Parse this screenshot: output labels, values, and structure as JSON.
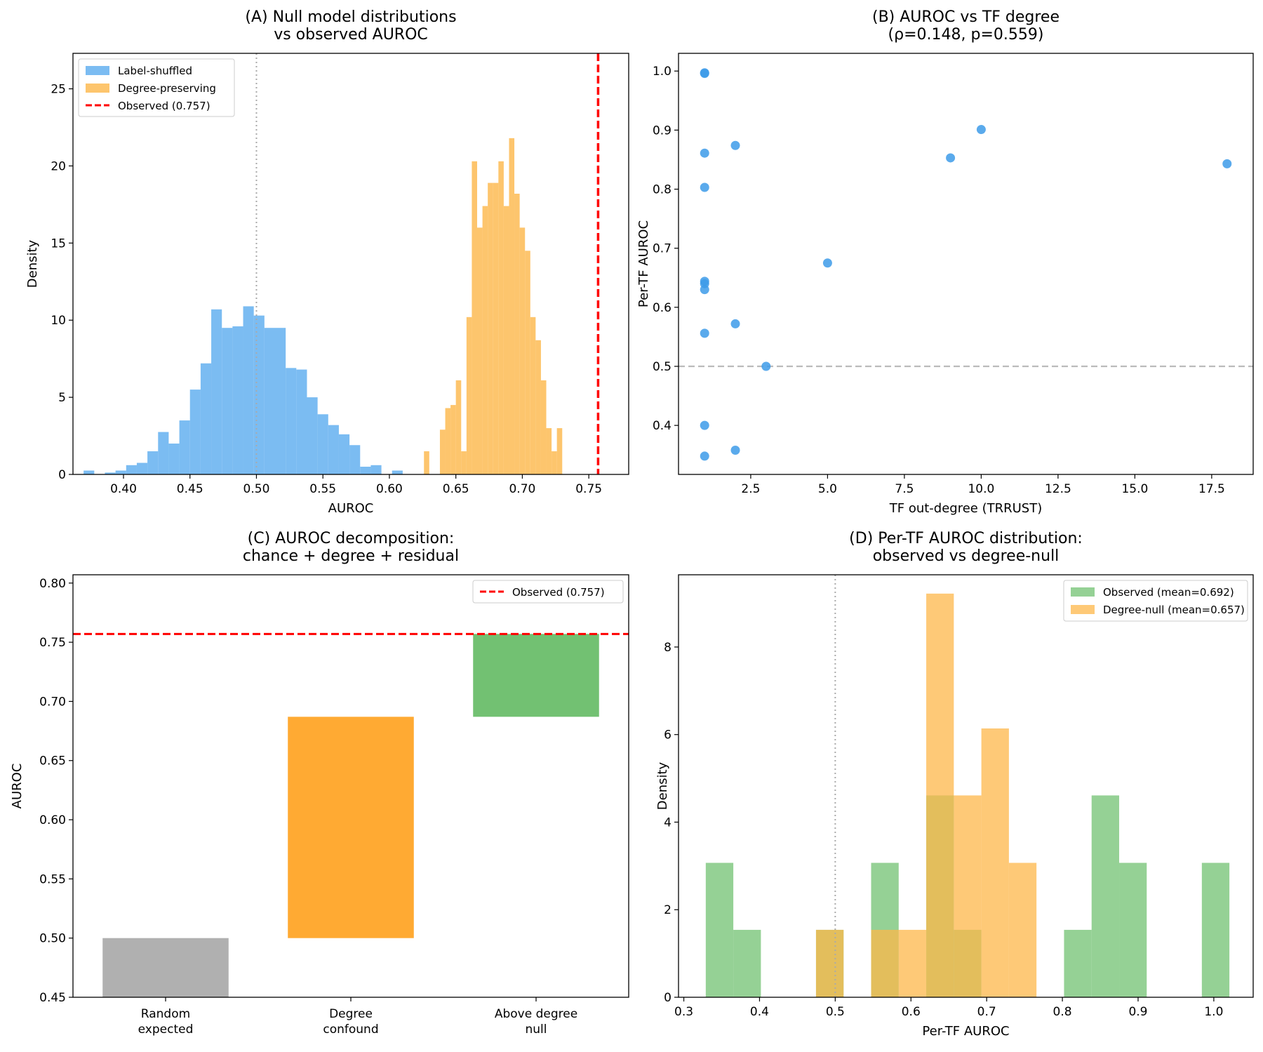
{
  "chart_data": [
    {
      "panel": "A",
      "type": "histogram",
      "title": [
        "(A) Null model distributions",
        "vs observed AUROC"
      ],
      "xlabel": "AUROC",
      "ylabel": "Density",
      "xlim": [
        0.362,
        0.78
      ],
      "ylim": [
        0,
        27.3
      ],
      "xticks": [
        0.4,
        0.45,
        0.5,
        0.55,
        0.6,
        0.65,
        0.7,
        0.75
      ],
      "xtick_labels": [
        "0.40",
        "0.45",
        "0.50",
        "0.55",
        "0.60",
        "0.65",
        "0.70",
        "0.75"
      ],
      "yticks": [
        0,
        5,
        10,
        15,
        20,
        25
      ],
      "ytick_labels": [
        "0",
        "5",
        "10",
        "15",
        "20",
        "25"
      ],
      "reference_line": {
        "x": 0.5,
        "style": "dotted",
        "color": "#aaaaaa"
      },
      "observed_line": {
        "x": 0.757,
        "label": "Observed (0.757)",
        "color": "#ff0000"
      },
      "legend_position": "top-left",
      "series": [
        {
          "name": "Label-shuffled",
          "color": "#5aabef",
          "bin_edges": [
            0.37,
            0.378,
            0.386,
            0.394,
            0.402,
            0.41,
            0.418,
            0.426,
            0.434,
            0.442,
            0.45,
            0.458,
            0.466,
            0.474,
            0.482,
            0.49,
            0.498,
            0.506,
            0.514,
            0.522,
            0.53,
            0.538,
            0.546,
            0.554,
            0.562,
            0.57,
            0.578,
            0.586,
            0.594,
            0.602,
            0.61,
            0.618
          ],
          "values": [
            0.25,
            0,
            0.12,
            0.25,
            0.6,
            0.75,
            1.5,
            2.75,
            2.0,
            3.5,
            5.5,
            7.2,
            10.7,
            9.5,
            9.6,
            10.9,
            10.3,
            9.5,
            9.5,
            6.9,
            6.8,
            5.0,
            3.9,
            3.2,
            2.6,
            1.9,
            0.5,
            0.6,
            0,
            0.25,
            0
          ]
        },
        {
          "name": "Degree-preserving",
          "color": "#fdb749",
          "bin_edges": [
            0.626,
            0.63,
            0.634,
            0.638,
            0.642,
            0.646,
            0.65,
            0.654,
            0.658,
            0.662,
            0.666,
            0.67,
            0.674,
            0.678,
            0.682,
            0.686,
            0.69,
            0.694,
            0.698,
            0.702,
            0.706,
            0.71,
            0.714,
            0.718,
            0.722,
            0.726,
            0.73
          ],
          "values": [
            1.5,
            0,
            0,
            2.9,
            4.3,
            4.5,
            6.1,
            1.5,
            10.2,
            20.3,
            16.0,
            17.4,
            18.9,
            18.9,
            20.3,
            17.4,
            21.8,
            18.2,
            16.0,
            14.5,
            10.2,
            8.7,
            6.1,
            3.0,
            1.5,
            3.0
          ]
        }
      ]
    },
    {
      "panel": "B",
      "type": "scatter",
      "title": [
        "(B) AUROC vs TF degree",
        "(ρ=0.148, p=0.559)"
      ],
      "xlabel": "TF out-degree (TRRUST)",
      "ylabel": "Per-TF AUROC",
      "xlim": [
        0.15,
        18.85
      ],
      "ylim": [
        0.317,
        1.03
      ],
      "xticks": [
        2.5,
        5.0,
        7.5,
        10.0,
        12.5,
        15.0,
        17.5
      ],
      "xtick_labels": [
        "2.5",
        "5.0",
        "7.5",
        "10.0",
        "12.5",
        "15.0",
        "17.5"
      ],
      "yticks": [
        0.4,
        0.5,
        0.6,
        0.7,
        0.8,
        0.9,
        1.0
      ],
      "ytick_labels": [
        "0.4",
        "0.5",
        "0.6",
        "0.7",
        "0.8",
        "0.9",
        "1.0"
      ],
      "reference_line": {
        "y": 0.5,
        "style": "dashed",
        "color": "#bbbbbb"
      },
      "color": "#3d9be9",
      "x": [
        1,
        1,
        1,
        1,
        1,
        1,
        1,
        1,
        1,
        1,
        2,
        2,
        2,
        3,
        5,
        9,
        10,
        18
      ],
      "y": [
        0.997,
        0.996,
        0.861,
        0.803,
        0.644,
        0.64,
        0.63,
        0.556,
        0.4,
        0.348,
        0.874,
        0.572,
        0.358,
        0.5,
        0.675,
        0.853,
        0.901,
        0.843
      ]
    },
    {
      "panel": "C",
      "type": "bar",
      "title": [
        "(C) AUROC decomposition:",
        "chance + degree + residual"
      ],
      "xlabel": "",
      "ylabel": "AUROC",
      "ylim": [
        0.45,
        0.807
      ],
      "yticks": [
        0.45,
        0.5,
        0.55,
        0.6,
        0.65,
        0.7,
        0.75,
        0.8
      ],
      "ytick_labels": [
        "0.45",
        "0.50",
        "0.55",
        "0.60",
        "0.65",
        "0.70",
        "0.75",
        "0.80"
      ],
      "categories": [
        [
          "Random",
          "expected"
        ],
        [
          "Degree",
          "confound"
        ],
        [
          "Above degree",
          "null"
        ]
      ],
      "bars": [
        {
          "bottom": 0.0,
          "top": 0.5,
          "color": "#b0b0b0"
        },
        {
          "bottom": 0.5,
          "top": 0.687,
          "color": "#ffaa33"
        },
        {
          "bottom": 0.687,
          "top": 0.757,
          "color": "#72c172"
        }
      ],
      "observed_line": {
        "y": 0.757,
        "label": "Observed (0.757)",
        "color": "#ff0000"
      },
      "legend_position": "top-right"
    },
    {
      "panel": "D",
      "type": "histogram",
      "title": [
        "(D) Per-TF AUROC distribution:",
        "observed vs degree-null"
      ],
      "xlabel": "Per-TF AUROC",
      "ylabel": "Density",
      "xlim": [
        0.293,
        1.052
      ],
      "ylim": [
        0,
        9.65
      ],
      "xticks": [
        0.3,
        0.4,
        0.5,
        0.6,
        0.7,
        0.8,
        0.9,
        1.0
      ],
      "xtick_labels": [
        "0.3",
        "0.4",
        "0.5",
        "0.6",
        "0.7",
        "0.8",
        "0.9",
        "1.0"
      ],
      "yticks": [
        0,
        2,
        4,
        6,
        8
      ],
      "ytick_labels": [
        "0",
        "2",
        "4",
        "6",
        "8"
      ],
      "reference_line": {
        "x": 0.5,
        "style": "dotted",
        "color": "#aaaaaa"
      },
      "legend_position": "top-right",
      "series": [
        {
          "name": "Observed (mean=0.692)",
          "color": "#72c172",
          "bin_edges": [
            0.329,
            0.3654,
            0.4018,
            0.4382,
            0.4746,
            0.511,
            0.5474,
            0.5838,
            0.6202,
            0.6566,
            0.693,
            0.7294,
            0.7658,
            0.8022,
            0.8386,
            0.875,
            0.9114,
            0.9478,
            0.9842,
            1.0206
          ],
          "values": [
            3.07,
            1.54,
            0,
            0,
            1.54,
            0,
            3.07,
            0,
            4.61,
            1.54,
            0,
            0,
            0,
            1.54,
            4.61,
            3.07,
            0,
            0,
            3.07
          ]
        },
        {
          "name": "Degree-null (mean=0.657)",
          "color": "#fdb749",
          "bin_edges": [
            0.4746,
            0.511,
            0.5474,
            0.5838,
            0.6202,
            0.6566,
            0.693,
            0.7294,
            0.7658
          ],
          "values": [
            1.54,
            0,
            1.54,
            1.54,
            9.22,
            4.61,
            6.14,
            3.07
          ]
        }
      ]
    }
  ]
}
